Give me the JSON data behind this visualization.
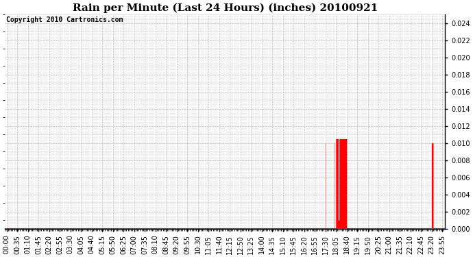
{
  "title": "Rain per Minute (Last 24 Hours) (inches) 20100921",
  "copyright": "Copyright 2010 Cartronics.com",
  "ylim": [
    0.0,
    0.025
  ],
  "yticks": [
    0.0,
    0.002,
    0.004,
    0.006,
    0.008,
    0.01,
    0.012,
    0.014,
    0.016,
    0.018,
    0.02,
    0.022,
    0.024
  ],
  "bar_color": "#ff0000",
  "background_color": "#ffffff",
  "grid_color": "#bbbbbb",
  "baseline_color": "#ff0000",
  "title_fontsize": 11,
  "tick_fontsize": 7,
  "copyright_fontsize": 7,
  "x_tick_positions": [
    0,
    35,
    70,
    105,
    140,
    175,
    210,
    245,
    280,
    315,
    350,
    385,
    420,
    455,
    490,
    525,
    560,
    595,
    630,
    665,
    700,
    735,
    770,
    805,
    840,
    875,
    910,
    945,
    980,
    1015,
    1050,
    1085,
    1120,
    1155,
    1190,
    1225,
    1260,
    1295,
    1330,
    1365,
    1400,
    1435
  ],
  "x_tick_labels": [
    "00:00",
    "00:35",
    "01:10",
    "01:45",
    "02:20",
    "02:55",
    "03:30",
    "04:05",
    "04:40",
    "05:15",
    "05:50",
    "06:25",
    "07:00",
    "07:35",
    "08:10",
    "08:45",
    "09:20",
    "09:55",
    "10:30",
    "11:05",
    "11:40",
    "12:15",
    "12:50",
    "13:25",
    "14:00",
    "14:35",
    "15:10",
    "15:45",
    "16:20",
    "16:55",
    "17:30",
    "18:05",
    "18:40",
    "19:15",
    "19:50",
    "20:25",
    "21:00",
    "21:35",
    "22:10",
    "22:45",
    "23:20",
    "23:55"
  ]
}
